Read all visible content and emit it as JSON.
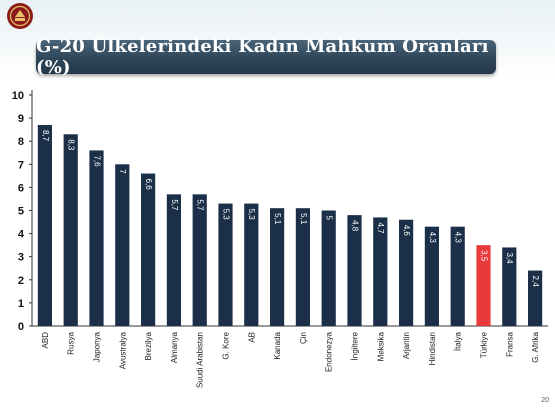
{
  "header": {
    "title": "G-20 Ülkelerindeki Kadın Mahkum Oranları (%)"
  },
  "footer": {
    "page_number": "20"
  },
  "colors": {
    "bar": "#1b2f48",
    "highlight": "#e83a3a",
    "title_bar": "#2f4659",
    "logo": "#8b1a1a"
  },
  "icons": {
    "logo": "emblem-logo"
  },
  "chart_data": {
    "type": "bar",
    "title": "G-20 Ülkelerindeki Kadın Mahkum Oranları (%)",
    "xlabel": "",
    "ylabel": "",
    "ylim": [
      0,
      10
    ],
    "yticks": [
      0,
      1,
      2,
      3,
      4,
      5,
      6,
      7,
      8,
      9,
      10
    ],
    "grid": false,
    "legend": "none",
    "categories": [
      "ABD",
      "Rusya",
      "Japonya",
      "Avustralya",
      "Brezilya",
      "Almanya",
      "Suudi Arabistan",
      "G. Kore",
      "AB",
      "Kanada",
      "Çin",
      "Endonezya",
      "İngiltere",
      "Meksika",
      "Arjantin",
      "Hindistan",
      "İtalya",
      "Türkiye",
      "Fransa",
      "G. Afrika"
    ],
    "values": [
      8.7,
      8.3,
      7.6,
      7,
      6.6,
      5.7,
      5.7,
      5.3,
      5.3,
      5.1,
      5.1,
      5,
      4.8,
      4.7,
      4.6,
      4.3,
      4.3,
      3.5,
      3.4,
      2.4
    ],
    "value_labels": [
      "8,7",
      "8,3",
      "7,6",
      "7",
      "6,6",
      "5,7",
      "5,7",
      "5,3",
      "5,3",
      "5,1",
      "5,1",
      "5",
      "4,8",
      "4,7",
      "4,6",
      "4,3",
      "4,3",
      "3,5",
      "3,4",
      "2,4"
    ],
    "highlight_category": "Türkiye"
  }
}
